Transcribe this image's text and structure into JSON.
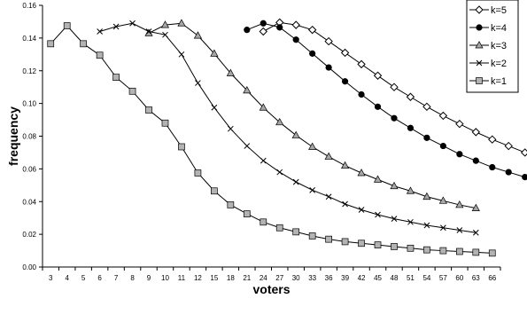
{
  "chart_data": {
    "type": "line",
    "xlabel": "voters",
    "ylabel": "frequency",
    "x_ticks": [
      "3",
      "4",
      "5",
      "6",
      "7",
      "8",
      "9",
      "10",
      "11",
      "12",
      "15",
      "18",
      "21",
      "24",
      "27",
      "30",
      "33",
      "36",
      "39",
      "42",
      "45",
      "48",
      "51",
      "54",
      "57",
      "60",
      "63",
      "66"
    ],
    "ylim": [
      0,
      0.16
    ],
    "y_ticks": [
      "0.00",
      "0.02",
      "0.04",
      "0.06",
      "0.08",
      "0.10",
      "0.12",
      "0.14",
      "0.16"
    ],
    "grid": false,
    "legend_position": "top-right",
    "series": [
      {
        "name": "k=5",
        "marker": "open-diamond",
        "color": "#000000",
        "start_index": 13,
        "values": [
          0.144,
          0.1495,
          0.148,
          0.145,
          0.138,
          0.131,
          0.124,
          0.117,
          0.11,
          0.104,
          0.098,
          0.0925,
          0.0875,
          0.0825,
          0.078,
          0.074,
          0.07,
          0.0665
        ]
      },
      {
        "name": "k=4",
        "marker": "filled-circle",
        "color": "#000000",
        "start_index": 12,
        "values": [
          0.145,
          0.149,
          0.1465,
          0.139,
          0.1305,
          0.122,
          0.1135,
          0.1055,
          0.098,
          0.091,
          0.085,
          0.079,
          0.074,
          0.069,
          0.065,
          0.061,
          0.058,
          0.055,
          0.0515
        ]
      },
      {
        "name": "k=3",
        "marker": "filled-triangle",
        "color": "#000000",
        "start_index": 6,
        "values": [
          0.143,
          0.148,
          0.149,
          0.1415,
          0.1305,
          0.1185,
          0.108,
          0.0975,
          0.0885,
          0.0805,
          0.0735,
          0.0675,
          0.062,
          0.0575,
          0.0535,
          0.0495,
          0.0465,
          0.043,
          0.0405,
          0.038,
          0.036
        ]
      },
      {
        "name": "k=2",
        "marker": "x",
        "color": "#000000",
        "start_index": 3,
        "values": [
          0.144,
          0.147,
          0.149,
          0.144,
          0.142,
          0.13,
          0.1125,
          0.0975,
          0.0845,
          0.074,
          0.065,
          0.058,
          0.052,
          0.047,
          0.043,
          0.0385,
          0.035,
          0.032,
          0.0295,
          0.0275,
          0.0255,
          0.024,
          0.0225,
          0.021
        ]
      },
      {
        "name": "k=1",
        "marker": "gray-square",
        "color": "#000000",
        "start_index": 0,
        "values": [
          0.1365,
          0.1475,
          0.1365,
          0.1295,
          0.116,
          0.1075,
          0.096,
          0.088,
          0.0735,
          0.0575,
          0.0465,
          0.038,
          0.0325,
          0.0275,
          0.024,
          0.0215,
          0.019,
          0.017,
          0.0155,
          0.0145,
          0.0135,
          0.0125,
          0.0115,
          0.0105,
          0.01,
          0.0095,
          0.009,
          0.0085
        ]
      }
    ]
  }
}
